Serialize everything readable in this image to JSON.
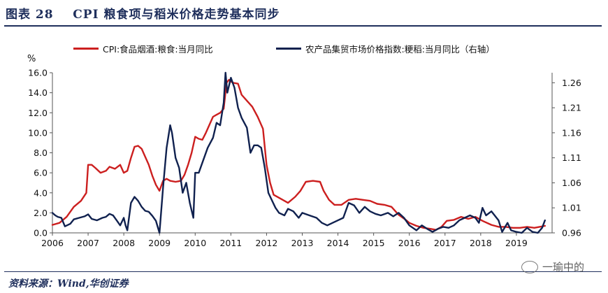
{
  "figure": {
    "label": "图表 28",
    "title": "CPI 粮食项与稻米价格走势基本同步",
    "source": "资料来源：Wind,华创证券",
    "watermark": "一瑜中的"
  },
  "chart_data": {
    "type": "line",
    "title": "",
    "ylabel_left": "%",
    "x_ticks": [
      "2006",
      "2007",
      "2008",
      "2009",
      "2010",
      "2011",
      "2012",
      "2013",
      "2014",
      "2015",
      "2016",
      "2017",
      "2018",
      "2019"
    ],
    "y_left": {
      "min": 0,
      "max": 16,
      "ticks": [
        0.0,
        2.0,
        4.0,
        6.0,
        8.0,
        10.0,
        12.0,
        14.0,
        16.0
      ],
      "tick_labels": [
        "0.0",
        "2.0",
        "4.0",
        "6.0",
        "8.0",
        "10.0",
        "12.0",
        "14.0",
        "16.0"
      ]
    },
    "y_right": {
      "min": 0.96,
      "max": 1.28,
      "ticks": [
        0.96,
        1.01,
        1.06,
        1.11,
        1.16,
        1.21,
        1.26
      ],
      "tick_labels": [
        "0.96",
        "1.01",
        "1.06",
        "1.11",
        "1.16",
        "1.21",
        "1.26"
      ]
    },
    "grid": false,
    "legend_position": "top",
    "series": [
      {
        "name": "CPI:食品烟酒:粮食:当月同比",
        "axis": "left",
        "color": "#cc1f1f",
        "points": [
          [
            2006.0,
            0.8
          ],
          [
            2006.2,
            1.0
          ],
          [
            2006.4,
            1.6
          ],
          [
            2006.6,
            2.6
          ],
          [
            2006.8,
            3.2
          ],
          [
            2006.95,
            4.0
          ],
          [
            2007.0,
            6.8
          ],
          [
            2007.1,
            6.8
          ],
          [
            2007.2,
            6.5
          ],
          [
            2007.35,
            6.0
          ],
          [
            2007.5,
            6.2
          ],
          [
            2007.6,
            6.6
          ],
          [
            2007.75,
            6.4
          ],
          [
            2007.9,
            6.8
          ],
          [
            2008.0,
            6.0
          ],
          [
            2008.1,
            6.2
          ],
          [
            2008.2,
            7.5
          ],
          [
            2008.3,
            8.6
          ],
          [
            2008.4,
            8.7
          ],
          [
            2008.5,
            8.4
          ],
          [
            2008.6,
            7.6
          ],
          [
            2008.7,
            6.8
          ],
          [
            2008.8,
            5.7
          ],
          [
            2008.9,
            4.8
          ],
          [
            2009.0,
            4.2
          ],
          [
            2009.1,
            5.2
          ],
          [
            2009.2,
            5.4
          ],
          [
            2009.3,
            5.2
          ],
          [
            2009.45,
            5.1
          ],
          [
            2009.6,
            5.2
          ],
          [
            2009.7,
            5.8
          ],
          [
            2009.8,
            6.8
          ],
          [
            2009.9,
            8.0
          ],
          [
            2010.0,
            9.6
          ],
          [
            2010.1,
            9.4
          ],
          [
            2010.2,
            9.3
          ],
          [
            2010.3,
            10.0
          ],
          [
            2010.4,
            10.8
          ],
          [
            2010.5,
            11.6
          ],
          [
            2010.6,
            11.8
          ],
          [
            2010.7,
            12.0
          ],
          [
            2010.8,
            12.4
          ],
          [
            2010.88,
            15.0
          ],
          [
            2010.95,
            15.3
          ],
          [
            2011.05,
            15.0
          ],
          [
            2011.2,
            14.9
          ],
          [
            2011.3,
            13.8
          ],
          [
            2011.45,
            13.2
          ],
          [
            2011.6,
            12.6
          ],
          [
            2011.75,
            11.6
          ],
          [
            2011.9,
            10.4
          ],
          [
            2012.0,
            6.8
          ],
          [
            2012.1,
            5.0
          ],
          [
            2012.2,
            3.8
          ],
          [
            2012.4,
            3.4
          ],
          [
            2012.6,
            3.0
          ],
          [
            2012.8,
            3.6
          ],
          [
            2012.95,
            4.2
          ],
          [
            2013.1,
            5.1
          ],
          [
            2013.3,
            5.2
          ],
          [
            2013.5,
            5.1
          ],
          [
            2013.6,
            4.2
          ],
          [
            2013.75,
            3.3
          ],
          [
            2013.9,
            2.8
          ],
          [
            2014.1,
            2.8
          ],
          [
            2014.3,
            3.3
          ],
          [
            2014.5,
            3.4
          ],
          [
            2014.7,
            3.3
          ],
          [
            2014.9,
            3.2
          ],
          [
            2015.1,
            2.9
          ],
          [
            2015.3,
            2.8
          ],
          [
            2015.5,
            2.6
          ],
          [
            2015.7,
            1.8
          ],
          [
            2015.9,
            1.3
          ],
          [
            2016.0,
            1.0
          ],
          [
            2016.2,
            0.7
          ],
          [
            2016.4,
            0.5
          ],
          [
            2016.6,
            0.4
          ],
          [
            2016.75,
            0.3
          ],
          [
            2016.9,
            0.6
          ],
          [
            2017.05,
            1.2
          ],
          [
            2017.25,
            1.3
          ],
          [
            2017.45,
            1.6
          ],
          [
            2017.65,
            1.4
          ],
          [
            2017.85,
            1.6
          ],
          [
            2018.05,
            1.2
          ],
          [
            2018.3,
            0.8
          ],
          [
            2018.5,
            0.6
          ],
          [
            2018.7,
            0.6
          ],
          [
            2018.9,
            0.5
          ],
          [
            2019.1,
            0.5
          ],
          [
            2019.3,
            0.6
          ],
          [
            2019.5,
            0.5
          ],
          [
            2019.65,
            0.6
          ],
          [
            2019.8,
            0.7
          ]
        ]
      },
      {
        "name": "农产品集贸市场价格指数:粳稻:当月同比（右轴）",
        "axis": "right",
        "color": "#10214f",
        "points": [
          [
            2006.0,
            1.0
          ],
          [
            2006.08,
            0.995
          ],
          [
            2006.15,
            0.992
          ],
          [
            2006.25,
            0.99
          ],
          [
            2006.35,
            0.973
          ],
          [
            2006.5,
            0.978
          ],
          [
            2006.6,
            0.987
          ],
          [
            2006.75,
            0.99
          ],
          [
            2006.9,
            0.993
          ],
          [
            2007.0,
            0.997
          ],
          [
            2007.1,
            0.988
          ],
          [
            2007.25,
            0.985
          ],
          [
            2007.4,
            0.99
          ],
          [
            2007.5,
            0.992
          ],
          [
            2007.6,
            0.998
          ],
          [
            2007.7,
            0.995
          ],
          [
            2007.8,
            0.985
          ],
          [
            2007.9,
            0.975
          ],
          [
            2008.0,
            0.99
          ],
          [
            2008.05,
            0.975
          ],
          [
            2008.1,
            0.965
          ],
          [
            2008.2,
            1.02
          ],
          [
            2008.3,
            1.032
          ],
          [
            2008.4,
            1.024
          ],
          [
            2008.5,
            1.012
          ],
          [
            2008.6,
            1.004
          ],
          [
            2008.7,
            1.002
          ],
          [
            2008.8,
            0.994
          ],
          [
            2008.9,
            0.984
          ],
          [
            2009.0,
            0.96
          ],
          [
            2009.1,
            1.05
          ],
          [
            2009.2,
            1.13
          ],
          [
            2009.3,
            1.175
          ],
          [
            2009.35,
            1.16
          ],
          [
            2009.45,
            1.11
          ],
          [
            2009.55,
            1.09
          ],
          [
            2009.65,
            1.04
          ],
          [
            2009.75,
            1.06
          ],
          [
            2009.85,
            1.02
          ],
          [
            2009.95,
            0.99
          ],
          [
            2010.0,
            1.08
          ],
          [
            2010.1,
            1.08
          ],
          [
            2010.2,
            1.1
          ],
          [
            2010.35,
            1.13
          ],
          [
            2010.5,
            1.15
          ],
          [
            2010.6,
            1.18
          ],
          [
            2010.7,
            1.175
          ],
          [
            2010.8,
            1.22
          ],
          [
            2010.85,
            1.28
          ],
          [
            2010.9,
            1.24
          ],
          [
            2011.0,
            1.27
          ],
          [
            2011.1,
            1.25
          ],
          [
            2011.2,
            1.21
          ],
          [
            2011.3,
            1.19
          ],
          [
            2011.45,
            1.17
          ],
          [
            2011.55,
            1.12
          ],
          [
            2011.65,
            1.135
          ],
          [
            2011.75,
            1.135
          ],
          [
            2011.85,
            1.13
          ],
          [
            2011.95,
            1.09
          ],
          [
            2012.05,
            1.04
          ],
          [
            2012.15,
            1.025
          ],
          [
            2012.25,
            1.01
          ],
          [
            2012.35,
            1.0
          ],
          [
            2012.5,
            0.995
          ],
          [
            2012.6,
            1.008
          ],
          [
            2012.75,
            1.003
          ],
          [
            2012.9,
            0.99
          ],
          [
            2013.0,
            1.0
          ],
          [
            2013.2,
            0.995
          ],
          [
            2013.4,
            0.99
          ],
          [
            2013.55,
            0.98
          ],
          [
            2013.7,
            0.975
          ],
          [
            2013.85,
            0.98
          ],
          [
            2014.0,
            0.985
          ],
          [
            2014.15,
            0.99
          ],
          [
            2014.3,
            1.02
          ],
          [
            2014.45,
            1.015
          ],
          [
            2014.6,
            1.0
          ],
          [
            2014.75,
            1.012
          ],
          [
            2014.9,
            1.003
          ],
          [
            2015.05,
            0.998
          ],
          [
            2015.2,
            0.995
          ],
          [
            2015.4,
            1.0
          ],
          [
            2015.55,
            0.993
          ],
          [
            2015.7,
            1.0
          ],
          [
            2015.85,
            0.99
          ],
          [
            2016.0,
            0.975
          ],
          [
            2016.2,
            0.965
          ],
          [
            2016.35,
            0.975
          ],
          [
            2016.5,
            0.968
          ],
          [
            2016.65,
            0.962
          ],
          [
            2016.8,
            0.968
          ],
          [
            2016.95,
            0.972
          ],
          [
            2017.1,
            0.97
          ],
          [
            2017.25,
            0.975
          ],
          [
            2017.4,
            0.985
          ],
          [
            2017.55,
            0.99
          ],
          [
            2017.7,
            0.995
          ],
          [
            2017.85,
            0.99
          ],
          [
            2017.95,
            0.98
          ],
          [
            2018.05,
            1.01
          ],
          [
            2018.15,
            0.995
          ],
          [
            2018.3,
            1.003
          ],
          [
            2018.5,
            0.985
          ],
          [
            2018.6,
            0.962
          ],
          [
            2018.75,
            0.98
          ],
          [
            2018.85,
            0.965
          ],
          [
            2019.0,
            0.962
          ],
          [
            2019.15,
            0.96
          ],
          [
            2019.3,
            0.97
          ],
          [
            2019.45,
            0.962
          ],
          [
            2019.6,
            0.96
          ],
          [
            2019.72,
            0.97
          ],
          [
            2019.8,
            0.985
          ]
        ]
      }
    ]
  }
}
